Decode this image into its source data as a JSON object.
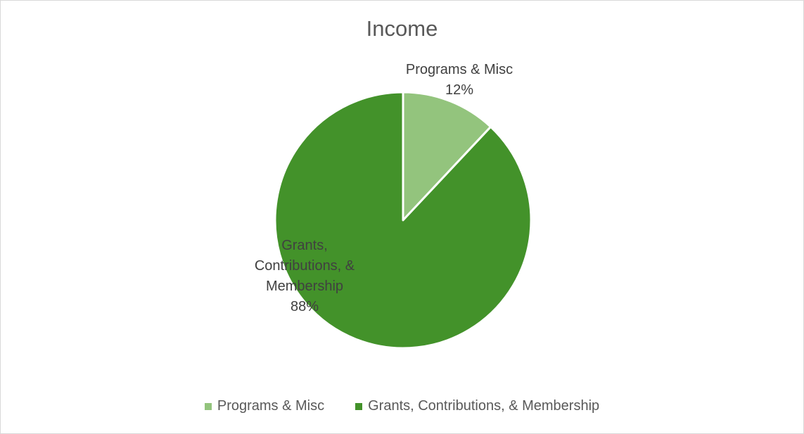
{
  "chart_data": {
    "type": "pie",
    "title": "Income",
    "categories": [
      "Programs & Misc",
      "Grants, Contributions, & Membership"
    ],
    "values": [
      12,
      88
    ],
    "unit": "%",
    "colors": [
      "#93c47d",
      "#43922a"
    ],
    "legend_position": "bottom",
    "data_labels": [
      {
        "lines": [
          "Programs & Misc",
          "12%"
        ]
      },
      {
        "lines": [
          "Grants,",
          "Contributions, &",
          "Membership",
          "88%"
        ]
      }
    ]
  }
}
